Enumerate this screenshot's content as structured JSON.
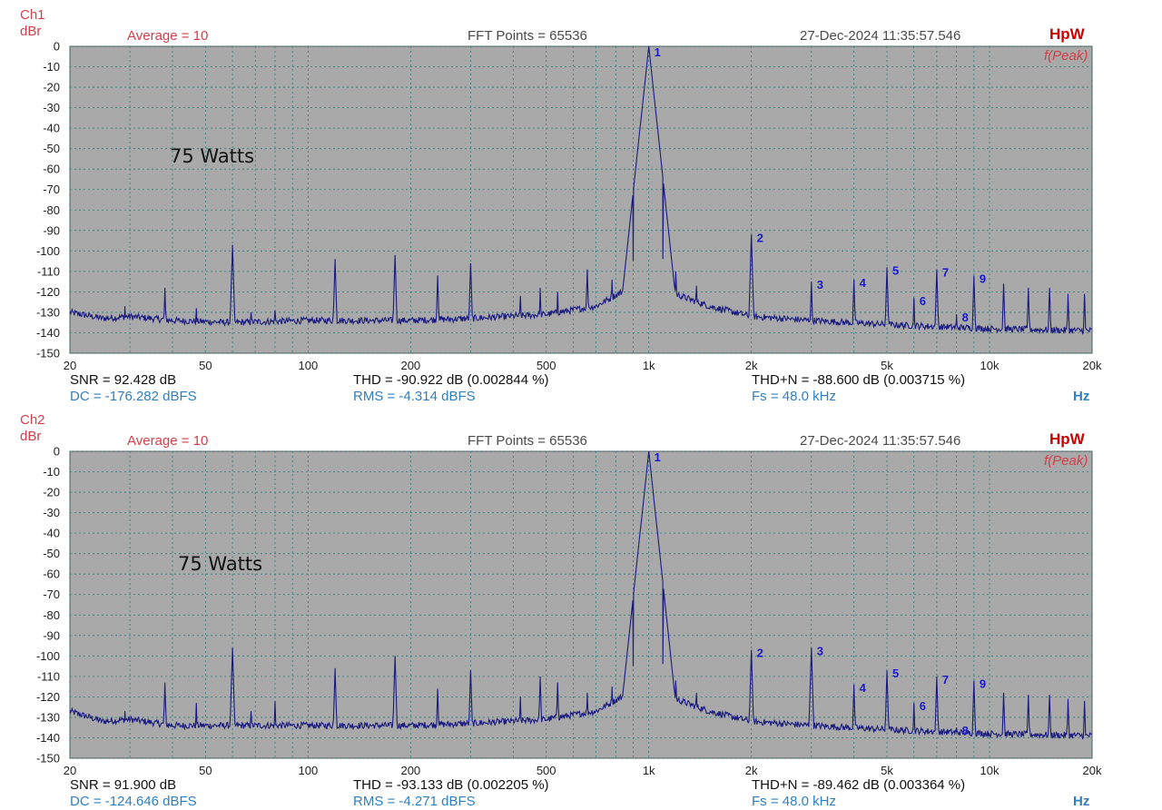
{
  "colors": {
    "plot_bg": "#a9a9a9",
    "grid": "#2e7d7d",
    "trace": "#1a1a80",
    "marker": "#1a1acc",
    "red": "#d0404a",
    "blue": "#2f7fbf"
  },
  "ch1": {
    "channel": "Ch1",
    "unit_y": "dBr",
    "average": "Average = 10",
    "fft": "FFT Points = 65536",
    "timestamp": "27-Dec-2024 11:35:57.546",
    "brand": "HpW",
    "peak_mode": "f(Peak)",
    "annotation": "75 Watts",
    "snr": "SNR = 92.428 dB",
    "thd": "THD = -90.922 dB (0.002844 %)",
    "thdn": "THD+N = -88.600 dB (0.003715 %)",
    "dc": "DC = -176.282 dBFS",
    "rms": "RMS = -4.314 dBFS",
    "fs": "Fs = 48.0 kHz",
    "unit_x": "Hz"
  },
  "ch2": {
    "channel": "Ch2",
    "unit_y": "dBr",
    "average": "Average = 10",
    "fft": "FFT Points = 65536",
    "timestamp": "27-Dec-2024 11:35:57.546",
    "brand": "HpW",
    "peak_mode": "f(Peak)",
    "annotation": "75 Watts",
    "snr": "SNR = 91.900 dB",
    "thd": "THD = -93.133 dB (0.002205 %)",
    "thdn": "THD+N = -89.462 dB (0.003364 %)",
    "dc": "DC = -124.646 dBFS",
    "rms": "RMS = -4.271 dBFS",
    "fs": "Fs = 48.0 kHz",
    "unit_x": "Hz"
  },
  "chart_data": [
    {
      "type": "line",
      "xscale": "log",
      "xlim": [
        20,
        20000
      ],
      "ylim": [
        -150,
        0
      ],
      "x_ticks": [
        {
          "v": 20,
          "l": "20"
        },
        {
          "v": 50,
          "l": "50"
        },
        {
          "v": 100,
          "l": "100"
        },
        {
          "v": 200,
          "l": "200"
        },
        {
          "v": 500,
          "l": "500"
        },
        {
          "v": 1000,
          "l": "1k"
        },
        {
          "v": 2000,
          "l": "2k"
        },
        {
          "v": 5000,
          "l": "5k"
        },
        {
          "v": 10000,
          "l": "10k"
        },
        {
          "v": 20000,
          "l": "20k"
        }
      ],
      "y_ticks": [
        0,
        -10,
        -20,
        -30,
        -40,
        -50,
        -60,
        -70,
        -80,
        -90,
        -100,
        -110,
        -120,
        -130,
        -140,
        -150
      ],
      "grid": true,
      "noise_floor": [
        [
          20,
          -130
        ],
        [
          25,
          -133
        ],
        [
          30,
          -132
        ],
        [
          40,
          -134
        ],
        [
          60,
          -135
        ],
        [
          100,
          -134
        ],
        [
          200,
          -134
        ],
        [
          300,
          -133
        ],
        [
          500,
          -131
        ],
        [
          700,
          -127
        ],
        [
          900,
          -117
        ],
        [
          1000,
          -112
        ],
        [
          1150,
          -120
        ],
        [
          1500,
          -127
        ],
        [
          2000,
          -132
        ],
        [
          3000,
          -134
        ],
        [
          5000,
          -136
        ],
        [
          10000,
          -138
        ],
        [
          20000,
          -139
        ]
      ],
      "peaks": [
        {
          "f": 29,
          "db": -127
        },
        {
          "f": 38,
          "db": -118
        },
        {
          "f": 47,
          "db": -128
        },
        {
          "f": 60,
          "db": -97
        },
        {
          "f": 68,
          "db": -130
        },
        {
          "f": 80,
          "db": -129
        },
        {
          "f": 120,
          "db": -104
        },
        {
          "f": 180,
          "db": -102
        },
        {
          "f": 240,
          "db": -112
        },
        {
          "f": 300,
          "db": -106
        },
        {
          "f": 420,
          "db": -122
        },
        {
          "f": 480,
          "db": -118
        },
        {
          "f": 540,
          "db": -120
        },
        {
          "f": 660,
          "db": -109
        },
        {
          "f": 780,
          "db": -114
        },
        {
          "f": 900,
          "db": -105
        },
        {
          "f": 1000,
          "db": 0
        },
        {
          "f": 1100,
          "db": -104
        },
        {
          "f": 1200,
          "db": -110
        },
        {
          "f": 1380,
          "db": -117
        },
        {
          "f": 2000,
          "db": -92
        },
        {
          "f": 3000,
          "db": -115
        },
        {
          "f": 4000,
          "db": -114
        },
        {
          "f": 5000,
          "db": -108
        },
        {
          "f": 6000,
          "db": -123
        },
        {
          "f": 7000,
          "db": -109
        },
        {
          "f": 8000,
          "db": -131
        },
        {
          "f": 9000,
          "db": -112
        },
        {
          "f": 11000,
          "db": -116
        },
        {
          "f": 13000,
          "db": -118
        },
        {
          "f": 15000,
          "db": -118
        },
        {
          "f": 17000,
          "db": -121
        },
        {
          "f": 19000,
          "db": -121
        }
      ],
      "markers": [
        {
          "label": "1",
          "f": 1000,
          "db": 0
        },
        {
          "label": "2",
          "f": 2000,
          "db": -92
        },
        {
          "label": "3",
          "f": 3000,
          "db": -115
        },
        {
          "label": "4",
          "f": 4000,
          "db": -114
        },
        {
          "label": "5",
          "f": 5000,
          "db": -108
        },
        {
          "label": "6",
          "f": 6000,
          "db": -123
        },
        {
          "label": "7",
          "f": 7000,
          "db": -109
        },
        {
          "label": "8",
          "f": 8000,
          "db": -131
        },
        {
          "label": "9",
          "f": 9000,
          "db": -112
        }
      ]
    },
    {
      "type": "line",
      "xscale": "log",
      "xlim": [
        20,
        20000
      ],
      "ylim": [
        -150,
        0
      ],
      "x_ticks": [
        {
          "v": 20,
          "l": "20"
        },
        {
          "v": 50,
          "l": "50"
        },
        {
          "v": 100,
          "l": "100"
        },
        {
          "v": 200,
          "l": "200"
        },
        {
          "v": 500,
          "l": "500"
        },
        {
          "v": 1000,
          "l": "1k"
        },
        {
          "v": 2000,
          "l": "2k"
        },
        {
          "v": 5000,
          "l": "5k"
        },
        {
          "v": 10000,
          "l": "10k"
        },
        {
          "v": 20000,
          "l": "20k"
        }
      ],
      "y_ticks": [
        0,
        -10,
        -20,
        -30,
        -40,
        -50,
        -60,
        -70,
        -80,
        -90,
        -100,
        -110,
        -120,
        -130,
        -140,
        -150
      ],
      "grid": true,
      "noise_floor": [
        [
          20,
          -127
        ],
        [
          25,
          -132
        ],
        [
          30,
          -131
        ],
        [
          40,
          -134
        ],
        [
          60,
          -134
        ],
        [
          100,
          -134
        ],
        [
          200,
          -134
        ],
        [
          300,
          -133
        ],
        [
          500,
          -131
        ],
        [
          700,
          -127
        ],
        [
          900,
          -117
        ],
        [
          1000,
          -112
        ],
        [
          1150,
          -120
        ],
        [
          1500,
          -127
        ],
        [
          2000,
          -132
        ],
        [
          3000,
          -134
        ],
        [
          5000,
          -136
        ],
        [
          10000,
          -138
        ],
        [
          20000,
          -139
        ]
      ],
      "peaks": [
        {
          "f": 29,
          "db": -127
        },
        {
          "f": 38,
          "db": -113
        },
        {
          "f": 47,
          "db": -123
        },
        {
          "f": 60,
          "db": -96
        },
        {
          "f": 68,
          "db": -127
        },
        {
          "f": 80,
          "db": -122
        },
        {
          "f": 120,
          "db": -106
        },
        {
          "f": 180,
          "db": -100
        },
        {
          "f": 240,
          "db": -116
        },
        {
          "f": 300,
          "db": -107
        },
        {
          "f": 420,
          "db": -120
        },
        {
          "f": 480,
          "db": -110
        },
        {
          "f": 540,
          "db": -113
        },
        {
          "f": 660,
          "db": -118
        },
        {
          "f": 780,
          "db": -115
        },
        {
          "f": 900,
          "db": -105
        },
        {
          "f": 1000,
          "db": 0
        },
        {
          "f": 1100,
          "db": -104
        },
        {
          "f": 1200,
          "db": -112
        },
        {
          "f": 1380,
          "db": -118
        },
        {
          "f": 2000,
          "db": -97
        },
        {
          "f": 3000,
          "db": -96
        },
        {
          "f": 4000,
          "db": -114
        },
        {
          "f": 5000,
          "db": -107
        },
        {
          "f": 6000,
          "db": -123
        },
        {
          "f": 7000,
          "db": -110
        },
        {
          "f": 8000,
          "db": -135
        },
        {
          "f": 9000,
          "db": -112
        },
        {
          "f": 11000,
          "db": -118
        },
        {
          "f": 13000,
          "db": -119
        },
        {
          "f": 15000,
          "db": -119
        },
        {
          "f": 17000,
          "db": -121
        },
        {
          "f": 19000,
          "db": -122
        }
      ],
      "markers": [
        {
          "label": "1",
          "f": 1000,
          "db": 0
        },
        {
          "label": "2",
          "f": 2000,
          "db": -97
        },
        {
          "label": "3",
          "f": 3000,
          "db": -96
        },
        {
          "label": "4",
          "f": 4000,
          "db": -114
        },
        {
          "label": "5",
          "f": 5000,
          "db": -107
        },
        {
          "label": "6",
          "f": 6000,
          "db": -123
        },
        {
          "label": "7",
          "f": 7000,
          "db": -110
        },
        {
          "label": "8",
          "f": 8000,
          "db": -135
        },
        {
          "label": "9",
          "f": 9000,
          "db": -112
        }
      ]
    }
  ]
}
